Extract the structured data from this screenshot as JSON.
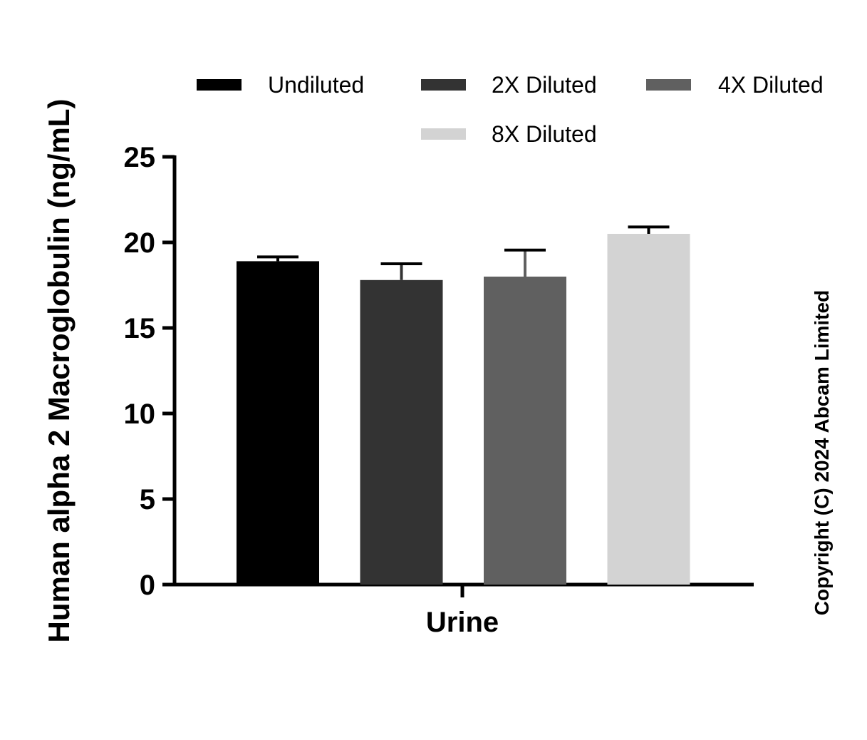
{
  "chart_data": {
    "type": "bar",
    "categories": [
      "Urine"
    ],
    "series": [
      {
        "name": "Undiluted",
        "values": [
          18.9
        ],
        "error": [
          0.25
        ],
        "color": "#000000"
      },
      {
        "name": "2X Diluted",
        "values": [
          17.8
        ],
        "error": [
          0.95
        ],
        "color": "#333333"
      },
      {
        "name": "4X Diluted",
        "values": [
          18.0
        ],
        "error": [
          1.55
        ],
        "color": "#606060"
      },
      {
        "name": "8X Diluted",
        "values": [
          20.5
        ],
        "error": [
          0.4
        ],
        "color": "#d3d3d3"
      }
    ],
    "ylabel": "Human alpha 2 Macroglobulin (ng/mL)",
    "xlabel": "",
    "ylim": [
      0,
      25
    ],
    "yticks": [
      "0",
      "5",
      "10",
      "15",
      "20",
      "25"
    ],
    "legend_position": "top",
    "grid": false
  },
  "copyright": "Copyright (C) 2024 Abcam Limited"
}
